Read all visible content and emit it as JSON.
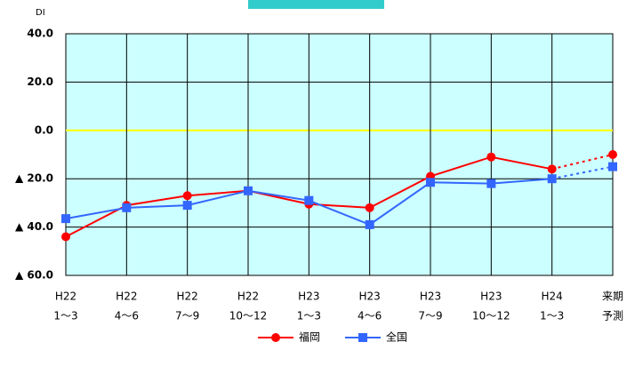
{
  "chart_data": {
    "type": "line",
    "y_axis_label": "DI",
    "categories": [
      [
        "H22",
        "1～3"
      ],
      [
        "H22",
        "4～6"
      ],
      [
        "H22",
        "7～9"
      ],
      [
        "H22",
        "10～12"
      ],
      [
        "H23",
        "1～3"
      ],
      [
        "H23",
        "4～6"
      ],
      [
        "H23",
        "7～9"
      ],
      [
        "H23",
        "10～12"
      ],
      [
        "H24",
        "1～3"
      ],
      [
        "来期",
        "予測"
      ]
    ],
    "series": [
      {
        "name": "福岡",
        "color": "#ff0000",
        "marker": "circle",
        "forecast_last": true,
        "values": [
          -44,
          -31,
          -27,
          -25,
          -30.5,
          -32,
          -19,
          -11,
          -16,
          -10
        ]
      },
      {
        "name": "全国",
        "color": "#3366ff",
        "marker": "square",
        "forecast_last": true,
        "values": [
          -36.5,
          -32,
          -31,
          -25,
          -29,
          -39,
          -21.5,
          -22,
          -20,
          -15
        ]
      }
    ],
    "ylim": [
      -60,
      40
    ],
    "yticks": [
      {
        "value": -60,
        "label": "▲ 60.0"
      },
      {
        "value": -40,
        "label": "▲ 40.0"
      },
      {
        "value": -20,
        "label": "▲ 20.0"
      },
      {
        "value": 0,
        "label": "0.0"
      },
      {
        "value": 20,
        "label": "20.0"
      },
      {
        "value": 40,
        "label": "40.0"
      }
    ],
    "grid": true,
    "zero_line_color": "#ffff00",
    "plot_background": "#ccffff",
    "legend": "bottom"
  }
}
